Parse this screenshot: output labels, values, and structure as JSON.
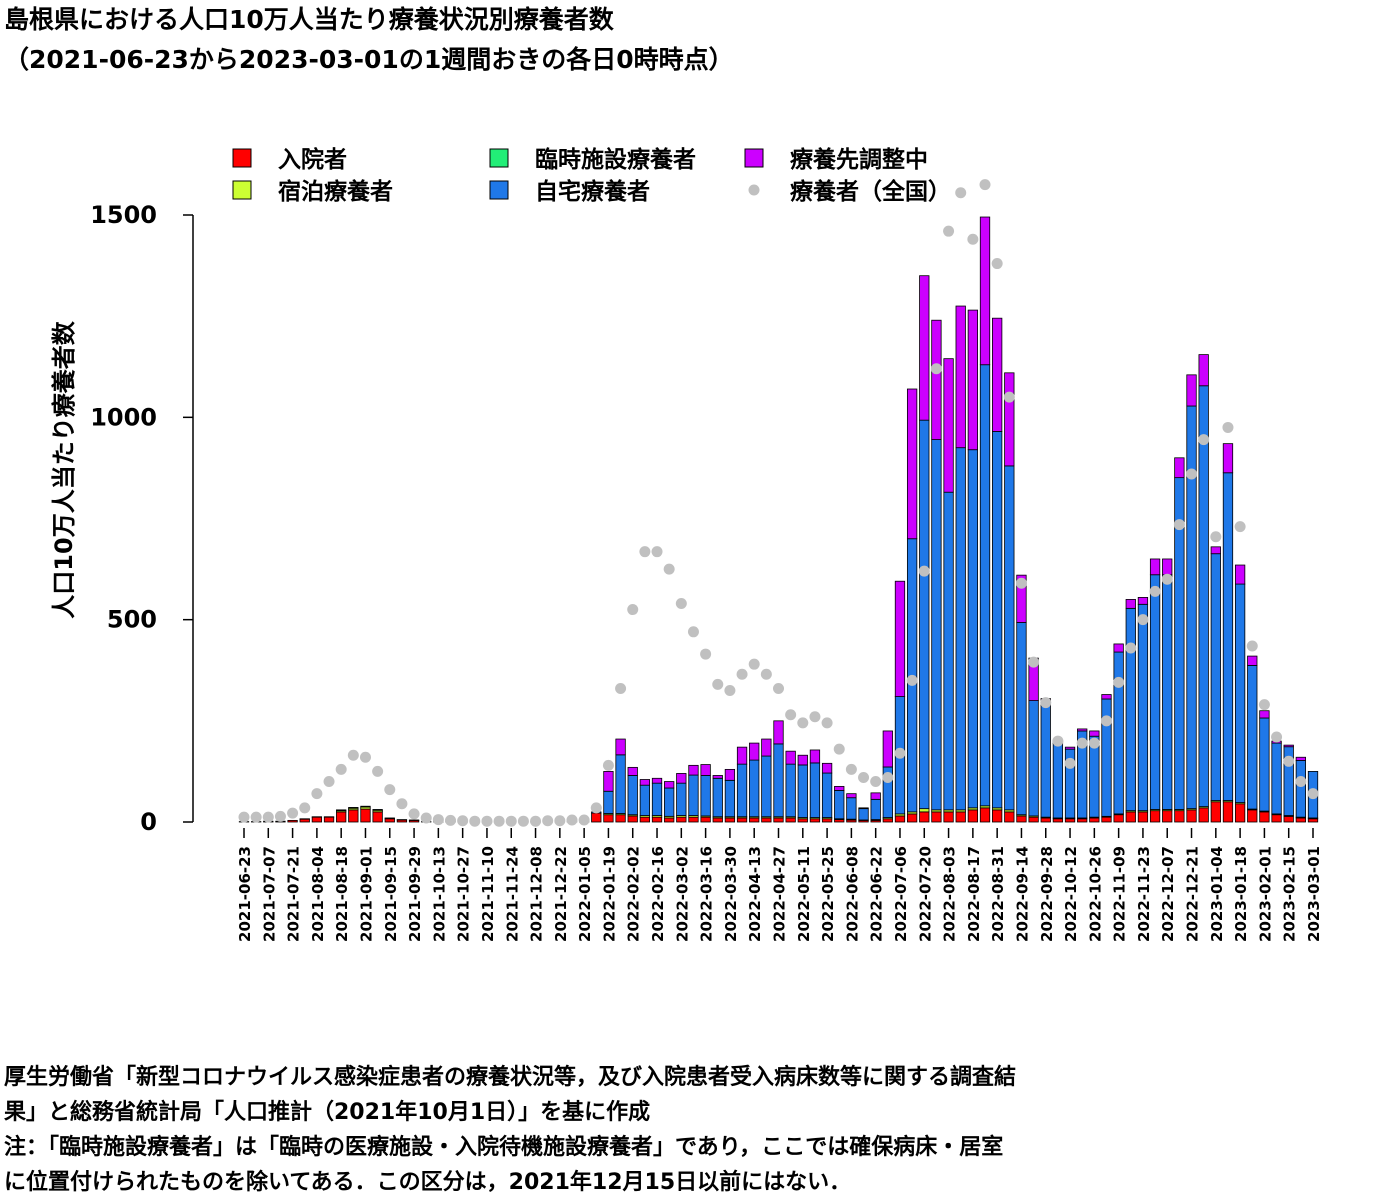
{
  "chart_data": {
    "type": "bar",
    "stacked": true,
    "title": "島根県における人口10万人当たり療養状況別療養者数",
    "subtitle": "（2021-06-23から2023-03-01の1週間おきの各日0時時点）",
    "y_label": "人口10万人当たり療養者数",
    "notes": [
      "厚生労働省「新型コロナウイルス感染症患者の療養状況等，及び入院患者受入病床数等に関する調査結",
      "果」と総務省統計局「人口推計（2021年10月1日）」を基に作成",
      "注：「臨時施設療養者」は「臨時の医療施設・入院待機施設療養者」であり，ここでは確保病床・居室",
      "に位置付けられたものを除いてある．この区分は，2021年12月15日以前にはない．"
    ],
    "categories": [
      "2021-06-23",
      null,
      "2021-07-07",
      null,
      "2021-07-21",
      null,
      "2021-08-04",
      null,
      "2021-08-18",
      null,
      "2021-09-01",
      null,
      "2021-09-15",
      null,
      "2021-09-29",
      null,
      "2021-10-13",
      null,
      "2021-10-27",
      null,
      "2021-11-10",
      null,
      "2021-11-24",
      null,
      "2021-12-08",
      null,
      "2021-12-22",
      null,
      "2022-01-05",
      null,
      "2022-01-19",
      null,
      "2022-02-02",
      null,
      "2022-02-16",
      null,
      "2022-03-02",
      null,
      "2022-03-16",
      null,
      "2022-03-30",
      null,
      "2022-04-13",
      null,
      "2022-04-27",
      null,
      "2022-05-11",
      null,
      "2022-05-25",
      null,
      "2022-06-08",
      null,
      "2022-06-22",
      null,
      "2022-07-06",
      null,
      "2022-07-20",
      null,
      "2022-08-03",
      null,
      "2022-08-17",
      null,
      "2022-08-31",
      null,
      "2022-09-14",
      null,
      "2022-09-28",
      null,
      "2022-10-12",
      null,
      "2022-10-26",
      null,
      "2022-11-09",
      null,
      "2022-11-23",
      null,
      "2022-12-07",
      null,
      "2022-12-21",
      null,
      "2023-01-04",
      null,
      "2023-01-18",
      null,
      "2023-02-01",
      null,
      "2023-02-15",
      null,
      "2023-03-01"
    ],
    "series": [
      {
        "name": "入院者",
        "color": "#ff0000",
        "kind": "bar",
        "values": [
          1,
          1,
          2,
          2,
          4,
          7,
          12,
          12,
          25,
          30,
          32,
          25,
          8,
          5,
          4,
          1,
          1,
          1,
          1,
          1,
          1,
          1,
          1,
          1,
          1,
          1,
          1,
          1,
          2,
          22,
          18,
          18,
          15,
          12,
          12,
          10,
          12,
          12,
          12,
          10,
          10,
          10,
          10,
          10,
          10,
          10,
          8,
          8,
          8,
          6,
          5,
          4,
          4,
          8,
          15,
          20,
          25,
          25,
          25,
          25,
          30,
          35,
          30,
          25,
          15,
          12,
          10,
          8,
          8,
          8,
          10,
          12,
          18,
          25,
          25,
          28,
          28,
          28,
          30,
          35,
          50,
          50,
          45,
          30,
          25,
          18,
          14,
          10,
          8
        ]
      },
      {
        "name": "宿泊療養者",
        "color": "#ccff33",
        "kind": "bar",
        "values": [
          0,
          0,
          0,
          0,
          0,
          1,
          1,
          1,
          3,
          4,
          5,
          4,
          2,
          1,
          1,
          0,
          0,
          0,
          0,
          0,
          0,
          0,
          0,
          0,
          0,
          0,
          0,
          0,
          0,
          0,
          3,
          3,
          3,
          4,
          4,
          4,
          4,
          4,
          3,
          3,
          3,
          3,
          3,
          3,
          3,
          3,
          3,
          3,
          3,
          2,
          2,
          1,
          2,
          3,
          5,
          5,
          8,
          5,
          5,
          5,
          5,
          5,
          5,
          5,
          3,
          3,
          2,
          2,
          2,
          2,
          2,
          2,
          2,
          3,
          3,
          3,
          3,
          3,
          3,
          3,
          3,
          3,
          3,
          2,
          2,
          2,
          2,
          2,
          2
        ]
      },
      {
        "name": "臨時施設療養者",
        "color": "#22ee77",
        "kind": "bar",
        "values": [
          0,
          0,
          0,
          0,
          0,
          0,
          0,
          0,
          0,
          0,
          0,
          0,
          0,
          0,
          0,
          0,
          0,
          0,
          0,
          0,
          0,
          0,
          0,
          0,
          0,
          0,
          0,
          0,
          0,
          0,
          0,
          0,
          0,
          0,
          0,
          0,
          0,
          0,
          0,
          0,
          0,
          0,
          0,
          0,
          0,
          0,
          0,
          0,
          0,
          0,
          0,
          0,
          0,
          0,
          0,
          0,
          0,
          0,
          0,
          0,
          0,
          0,
          0,
          0,
          0,
          0,
          0,
          0,
          0,
          0,
          0,
          0,
          0,
          0,
          0,
          0,
          0,
          0,
          0,
          0,
          0,
          0,
          0,
          0,
          0,
          0,
          0,
          0,
          0
        ]
      },
      {
        "name": "自宅療養者",
        "color": "#1f78e8",
        "kind": "bar",
        "values": [
          0,
          0,
          0,
          0,
          0,
          0,
          0,
          0,
          2,
          2,
          2,
          2,
          0,
          0,
          0,
          0,
          0,
          0,
          0,
          0,
          0,
          0,
          0,
          0,
          0,
          0,
          0,
          0,
          0,
          3,
          55,
          145,
          97,
          75,
          80,
          70,
          80,
          100,
          100,
          95,
          90,
          130,
          140,
          150,
          180,
          130,
          130,
          135,
          110,
          70,
          53,
          28,
          50,
          125,
          290,
          675,
          960,
          915,
          785,
          895,
          885,
          1090,
          930,
          850,
          475,
          285,
          285,
          185,
          170,
          215,
          200,
          290,
          400,
          500,
          510,
          580,
          580,
          820,
          995,
          1040,
          610,
          810,
          540,
          355,
          230,
          175,
          170,
          140,
          115
        ]
      },
      {
        "name": "療養先調整中",
        "color": "#cc00ff",
        "kind": "bar",
        "values": [
          0,
          0,
          0,
          0,
          0,
          0,
          0,
          0,
          0,
          0,
          0,
          0,
          0,
          0,
          0,
          0,
          0,
          0,
          0,
          0,
          0,
          0,
          0,
          0,
          0,
          0,
          0,
          0,
          0,
          0,
          49,
          39,
          20,
          14,
          12,
          16,
          24,
          24,
          27,
          7,
          27,
          42,
          42,
          42,
          57,
          32,
          24,
          32,
          24,
          10,
          10,
          2,
          16,
          89,
          285,
          370,
          357,
          295,
          330,
          350,
          345,
          365,
          280,
          230,
          117,
          105,
          8,
          5,
          5,
          5,
          13,
          11,
          20,
          22,
          17,
          39,
          39,
          49,
          77,
          77,
          17,
          72,
          47,
          23,
          18,
          5,
          4,
          8,
          0
        ]
      },
      {
        "name": "療養者（全国）",
        "color": "#c0c0c0",
        "kind": "point",
        "values": [
          12,
          12,
          12,
          14,
          22,
          35,
          70,
          100,
          130,
          165,
          160,
          125,
          80,
          45,
          20,
          10,
          6,
          4,
          3,
          2,
          2,
          2,
          2,
          2,
          2,
          3,
          3,
          5,
          5,
          35,
          140,
          330,
          525,
          668,
          668,
          625,
          540,
          470,
          415,
          340,
          325,
          365,
          390,
          365,
          330,
          265,
          245,
          260,
          245,
          180,
          130,
          110,
          100,
          110,
          170,
          350,
          620,
          1120,
          1460,
          1555,
          1440,
          1575,
          1380,
          1050,
          590,
          395,
          295,
          200,
          145,
          195,
          195,
          250,
          345,
          430,
          500,
          570,
          600,
          735,
          860,
          945,
          705,
          975,
          730,
          435,
          290,
          210,
          150,
          100,
          70
        ]
      }
    ],
    "ylim": [
      0,
      1500
    ],
    "yticks": [
      0,
      500,
      1000,
      1500
    ]
  }
}
